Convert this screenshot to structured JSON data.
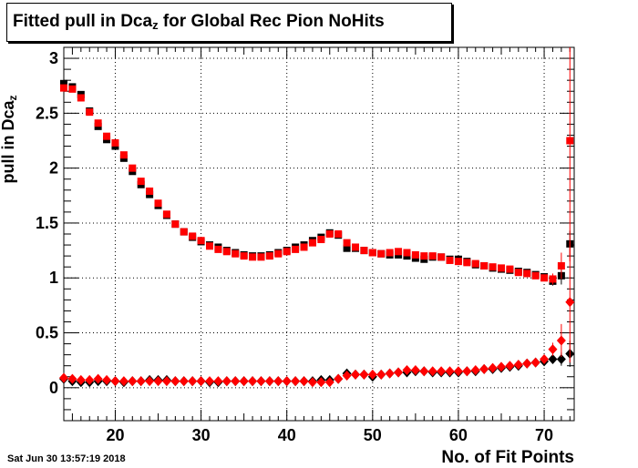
{
  "title": {
    "prefix": "Fitted pull in Dca",
    "sub": "z",
    "suffix": " for Global Rec Pion NoHits"
  },
  "axis": {
    "ylabel_main": "pull in Dca",
    "ylabel_sub": "z",
    "xlabel": "No. of Fit Points",
    "timestamp": "Sat Jun 30 13:57:19 2018"
  },
  "chart_data": {
    "type": "scatter",
    "xlim": [
      14,
      73.5
    ],
    "ylim": [
      -0.3,
      3.1
    ],
    "grid": true,
    "xticks": [
      20,
      30,
      40,
      50,
      60,
      70
    ],
    "yticks": [
      0,
      0.5,
      1,
      1.5,
      2,
      2.5,
      3
    ],
    "ytick_labels": [
      "0",
      "0.5",
      "1",
      "1.5",
      "2",
      "2.5",
      "3"
    ],
    "x": [
      14,
      15,
      16,
      17,
      18,
      19,
      20,
      21,
      22,
      23,
      24,
      25,
      26,
      27,
      28,
      29,
      30,
      31,
      32,
      33,
      34,
      35,
      36,
      37,
      38,
      39,
      40,
      41,
      42,
      43,
      44,
      45,
      46,
      47,
      48,
      49,
      50,
      51,
      52,
      53,
      54,
      55,
      56,
      57,
      58,
      59,
      60,
      61,
      62,
      63,
      64,
      65,
      66,
      67,
      68,
      69,
      70,
      71,
      72,
      73
    ],
    "series": [
      {
        "marker": "square",
        "color": "#000000",
        "values": [
          2.77,
          2.74,
          2.67,
          2.52,
          2.38,
          2.26,
          2.2,
          2.09,
          1.97,
          1.85,
          1.76,
          1.66,
          1.57,
          1.49,
          1.42,
          1.37,
          1.33,
          1.3,
          1.28,
          1.25,
          1.23,
          1.21,
          1.2,
          1.2,
          1.21,
          1.23,
          1.25,
          1.28,
          1.3,
          1.34,
          1.37,
          1.41,
          1.39,
          1.27,
          1.27,
          1.25,
          1.23,
          1.22,
          1.21,
          1.21,
          1.2,
          1.18,
          1.17,
          1.19,
          1.19,
          1.17,
          1.17,
          1.15,
          1.12,
          1.11,
          1.09,
          1.08,
          1.07,
          1.06,
          1.05,
          1.03,
          1.01,
          0.97,
          1.02,
          1.31
        ],
        "errors": [
          0.02,
          0.02,
          0.02,
          0.02,
          0.02,
          0.02,
          0.02,
          0.02,
          0.02,
          0.02,
          0.02,
          0.02,
          0.02,
          0.02,
          0.02,
          0.02,
          0.02,
          0.02,
          0.02,
          0.02,
          0.02,
          0.02,
          0.02,
          0.02,
          0.02,
          0.02,
          0.02,
          0.02,
          0.02,
          0.02,
          0.02,
          0.02,
          0.02,
          0.02,
          0.02,
          0.02,
          0.02,
          0.02,
          0.02,
          0.02,
          0.02,
          0.02,
          0.02,
          0.02,
          0.02,
          0.02,
          0.02,
          0.02,
          0.02,
          0.02,
          0.02,
          0.02,
          0.02,
          0.02,
          0.02,
          0.02,
          0.03,
          0.04,
          0.08,
          0.12
        ]
      },
      {
        "marker": "square",
        "color": "#ff0000",
        "values": [
          2.73,
          2.72,
          2.64,
          2.51,
          2.41,
          2.29,
          2.23,
          2.12,
          2.0,
          1.88,
          1.79,
          1.68,
          1.58,
          1.49,
          1.42,
          1.38,
          1.34,
          1.29,
          1.26,
          1.24,
          1.22,
          1.2,
          1.19,
          1.19,
          1.2,
          1.22,
          1.24,
          1.26,
          1.28,
          1.32,
          1.35,
          1.4,
          1.4,
          1.32,
          1.28,
          1.25,
          1.23,
          1.22,
          1.23,
          1.24,
          1.23,
          1.21,
          1.2,
          1.2,
          1.19,
          1.16,
          1.15,
          1.14,
          1.13,
          1.11,
          1.1,
          1.09,
          1.08,
          1.05,
          1.04,
          1.02,
          1.0,
          0.99,
          1.11,
          2.25
        ],
        "errors": [
          0.02,
          0.02,
          0.02,
          0.02,
          0.02,
          0.02,
          0.02,
          0.02,
          0.02,
          0.02,
          0.02,
          0.02,
          0.02,
          0.02,
          0.02,
          0.02,
          0.02,
          0.02,
          0.02,
          0.02,
          0.02,
          0.02,
          0.02,
          0.02,
          0.02,
          0.02,
          0.02,
          0.02,
          0.02,
          0.02,
          0.02,
          0.02,
          0.02,
          0.02,
          0.02,
          0.02,
          0.02,
          0.02,
          0.02,
          0.02,
          0.02,
          0.02,
          0.02,
          0.02,
          0.02,
          0.02,
          0.02,
          0.02,
          0.02,
          0.02,
          0.02,
          0.02,
          0.02,
          0.02,
          0.02,
          0.02,
          0.03,
          0.05,
          0.12,
          1.1
        ]
      },
      {
        "marker": "diamond",
        "color": "#000000",
        "values": [
          0.08,
          0.06,
          0.05,
          0.05,
          0.06,
          0.06,
          0.06,
          0.05,
          0.06,
          0.06,
          0.07,
          0.07,
          0.07,
          0.06,
          0.06,
          0.06,
          0.06,
          0.05,
          0.05,
          0.06,
          0.06,
          0.06,
          0.06,
          0.06,
          0.06,
          0.06,
          0.06,
          0.06,
          0.06,
          0.06,
          0.07,
          0.07,
          0.08,
          0.13,
          0.12,
          0.12,
          0.1,
          0.12,
          0.13,
          0.14,
          0.14,
          0.15,
          0.15,
          0.14,
          0.14,
          0.14,
          0.14,
          0.15,
          0.15,
          0.17,
          0.17,
          0.18,
          0.19,
          0.2,
          0.22,
          0.23,
          0.24,
          0.26,
          0.26,
          0.31
        ],
        "errors": [
          0.01,
          0.01,
          0.01,
          0.01,
          0.01,
          0.01,
          0.01,
          0.01,
          0.01,
          0.01,
          0.01,
          0.01,
          0.01,
          0.01,
          0.01,
          0.01,
          0.01,
          0.01,
          0.01,
          0.01,
          0.01,
          0.01,
          0.01,
          0.01,
          0.01,
          0.01,
          0.01,
          0.01,
          0.01,
          0.01,
          0.01,
          0.01,
          0.01,
          0.01,
          0.01,
          0.01,
          0.01,
          0.01,
          0.01,
          0.01,
          0.01,
          0.01,
          0.01,
          0.01,
          0.01,
          0.01,
          0.01,
          0.01,
          0.01,
          0.01,
          0.01,
          0.01,
          0.01,
          0.01,
          0.02,
          0.02,
          0.03,
          0.04,
          0.06,
          0.12
        ]
      },
      {
        "marker": "diamond",
        "color": "#ff0000",
        "values": [
          0.09,
          0.08,
          0.07,
          0.07,
          0.08,
          0.07,
          0.06,
          0.06,
          0.06,
          0.06,
          0.06,
          0.06,
          0.06,
          0.06,
          0.06,
          0.06,
          0.06,
          0.06,
          0.06,
          0.06,
          0.06,
          0.06,
          0.06,
          0.06,
          0.06,
          0.06,
          0.06,
          0.06,
          0.06,
          0.05,
          0.05,
          0.05,
          0.08,
          0.11,
          0.12,
          0.12,
          0.12,
          0.12,
          0.13,
          0.14,
          0.16,
          0.16,
          0.15,
          0.15,
          0.15,
          0.15,
          0.15,
          0.15,
          0.16,
          0.17,
          0.18,
          0.19,
          0.2,
          0.21,
          0.22,
          0.23,
          0.26,
          0.35,
          0.43,
          0.78
        ],
        "errors": [
          0.01,
          0.01,
          0.01,
          0.01,
          0.01,
          0.01,
          0.01,
          0.01,
          0.01,
          0.01,
          0.01,
          0.01,
          0.01,
          0.01,
          0.01,
          0.01,
          0.01,
          0.01,
          0.01,
          0.01,
          0.01,
          0.01,
          0.01,
          0.01,
          0.01,
          0.01,
          0.01,
          0.01,
          0.01,
          0.01,
          0.01,
          0.01,
          0.01,
          0.01,
          0.01,
          0.01,
          0.01,
          0.01,
          0.01,
          0.01,
          0.01,
          0.01,
          0.01,
          0.01,
          0.01,
          0.01,
          0.01,
          0.01,
          0.01,
          0.01,
          0.01,
          0.01,
          0.01,
          0.01,
          0.02,
          0.02,
          0.04,
          0.06,
          0.15,
          0.55
        ]
      }
    ]
  }
}
